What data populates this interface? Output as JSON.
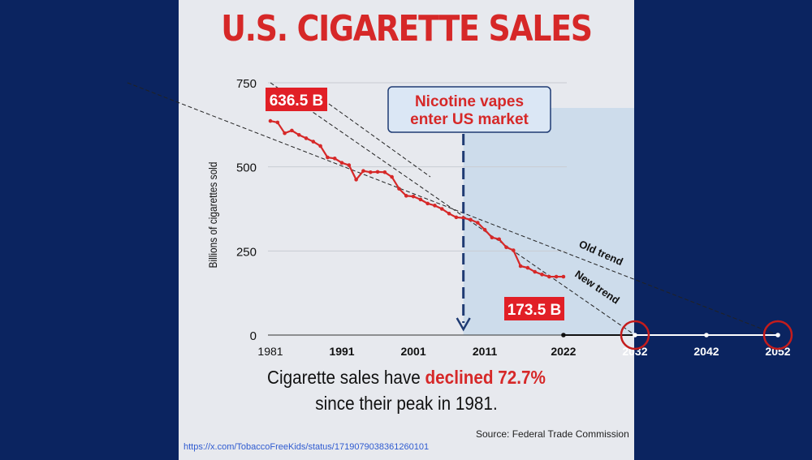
{
  "title": "U.S. CIGARETTE SALES",
  "caption": {
    "prefix": "Cigarette sales have ",
    "highlight": "declined 72.7%",
    "line2": "since their peak in 1981."
  },
  "source": "Source: Federal Trade Commission",
  "url": "https://x.com/TobaccoFreeKids/status/1719079038361260101",
  "colors": {
    "background": "#0b2460",
    "panel": "#e7e9ee",
    "accent_red": "#d62828",
    "arrow_blue": "#1f3b73",
    "shade": "#c8d9ea"
  },
  "chart_data": {
    "type": "line",
    "ylabel": "Billions of cigarettes sold",
    "ylim": [
      0,
      750
    ],
    "yticks": [
      0,
      250,
      500,
      750
    ],
    "xticks": [
      1981,
      1991,
      2001,
      2011,
      2022,
      2032,
      2042,
      2052
    ],
    "xlim": [
      1981,
      2052
    ],
    "series": [
      {
        "x": [
          1981,
          1982,
          1983,
          1984,
          1985,
          1986,
          1987,
          1988,
          1989,
          1990,
          1991,
          1992,
          1993,
          1994,
          1995,
          1996,
          1997,
          1998,
          1999,
          2000,
          2001,
          2002,
          2003,
          2004,
          2005,
          2006,
          2007,
          2008,
          2009,
          2010,
          2011,
          2012,
          2013,
          2014,
          2015,
          2016,
          2017,
          2018,
          2019,
          2020,
          2021,
          2022
        ],
        "values": [
          636.5,
          632,
          600,
          608,
          595,
          585,
          575,
          562,
          528,
          525,
          512,
          505,
          462,
          488,
          484,
          485,
          484,
          470,
          435,
          414,
          412,
          403,
          391,
          385,
          375,
          361,
          350,
          348,
          343,
          334,
          313,
          290,
          285,
          261,
          252,
          205,
          200,
          188,
          180,
          173.5,
          173.5,
          173.5
        ]
      }
    ],
    "trend_lines": [
      {
        "name": "Old trend",
        "x": [
          1961,
          2052
        ],
        "values": [
          750,
          0
        ]
      },
      {
        "name": "New trend",
        "x": [
          1981,
          2032
        ],
        "values": [
          750,
          0
        ]
      }
    ],
    "annotations": [
      {
        "text": "636.5 B",
        "x": 1981,
        "y": 636.5
      },
      {
        "text": "173.5 B",
        "x": 2022,
        "y": 173.5
      },
      {
        "text": "Nicotine vapes enter US market",
        "x": 2008
      },
      {
        "text": "Old trend"
      },
      {
        "text": "New trend"
      }
    ],
    "shaded_from_x": 2008,
    "grid": "horizontal",
    "zero_crossing_markers": [
      2032,
      2052
    ]
  }
}
